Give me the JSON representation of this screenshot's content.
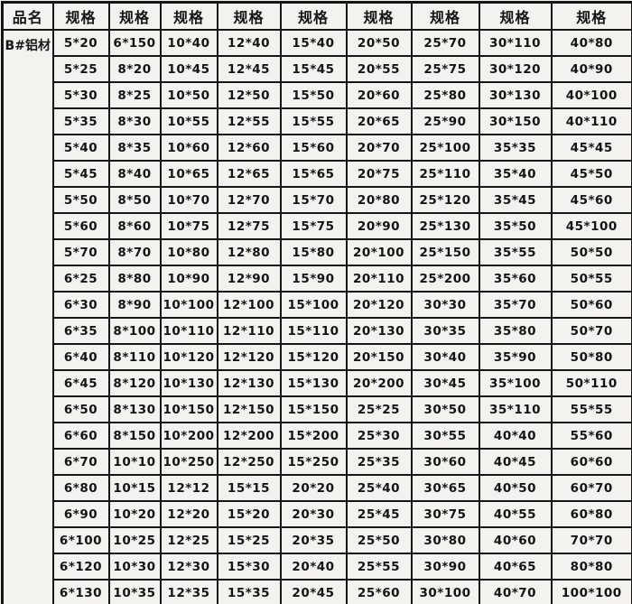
{
  "colors": {
    "background": "#f3f2ef",
    "border": "#161616",
    "text": "#141414"
  },
  "table": {
    "product_name": "B#铝材",
    "product_header": "品名",
    "spec_header": "规格",
    "headers": [
      "品名",
      "规格",
      "规格",
      "规格",
      "规格",
      "规格",
      "规格",
      "规格",
      "规格",
      "规格"
    ],
    "rows": [
      [
        "5*20",
        "6*150",
        "10*40",
        "12*40",
        "15*40",
        "20*50",
        "25*70",
        "30*110",
        "40*80"
      ],
      [
        "5*25",
        "8*20",
        "10*45",
        "12*45",
        "15*45",
        "20*55",
        "25*75",
        "30*120",
        "40*90"
      ],
      [
        "5*30",
        "8*25",
        "10*50",
        "12*50",
        "15*50",
        "20*60",
        "25*80",
        "30*130",
        "40*100"
      ],
      [
        "5*35",
        "8*30",
        "10*55",
        "12*55",
        "15*55",
        "20*65",
        "25*90",
        "30*150",
        "40*110"
      ],
      [
        "5*40",
        "8*35",
        "10*60",
        "12*60",
        "15*60",
        "20*70",
        "25*100",
        "35*35",
        "45*45"
      ],
      [
        "5*45",
        "8*40",
        "10*65",
        "12*65",
        "15*65",
        "20*75",
        "25*110",
        "35*40",
        "45*50"
      ],
      [
        "5*50",
        "8*50",
        "10*70",
        "12*70",
        "15*70",
        "20*80",
        "25*120",
        "35*45",
        "45*60"
      ],
      [
        "5*60",
        "8*60",
        "10*75",
        "12*75",
        "15*75",
        "20*90",
        "25*130",
        "35*50",
        "45*100"
      ],
      [
        "5*70",
        "8*70",
        "10*80",
        "12*80",
        "15*80",
        "20*100",
        "25*150",
        "35*55",
        "50*50"
      ],
      [
        "6*25",
        "8*80",
        "10*90",
        "12*90",
        "15*90",
        "20*110",
        "25*200",
        "35*60",
        "50*55"
      ],
      [
        "6*30",
        "8*90",
        "10*100",
        "12*100",
        "15*100",
        "20*120",
        "30*30",
        "35*70",
        "50*60"
      ],
      [
        "6*35",
        "8*100",
        "10*110",
        "12*110",
        "15*110",
        "20*130",
        "30*35",
        "35*80",
        "50*70"
      ],
      [
        "6*40",
        "8*110",
        "10*120",
        "12*120",
        "15*120",
        "20*150",
        "30*40",
        "35*90",
        "50*80"
      ],
      [
        "6*45",
        "8*120",
        "10*130",
        "12*130",
        "15*130",
        "20*200",
        "30*45",
        "35*100",
        "50*110"
      ],
      [
        "6*50",
        "8*130",
        "10*150",
        "12*150",
        "15*150",
        "25*25",
        "30*50",
        "35*110",
        "55*55"
      ],
      [
        "6*60",
        "8*150",
        "10*200",
        "12*200",
        "15*200",
        "25*30",
        "30*55",
        "40*40",
        "55*60"
      ],
      [
        "6*70",
        "10*10",
        "10*250",
        "12*250",
        "15*250",
        "25*35",
        "30*60",
        "40*45",
        "60*60"
      ],
      [
        "6*80",
        "10*15",
        "12*12",
        "15*15",
        "20*20",
        "25*40",
        "30*65",
        "40*50",
        "60*70"
      ],
      [
        "6*90",
        "10*20",
        "12*20",
        "15*20",
        "20*30",
        "25*45",
        "30*75",
        "40*55",
        "60*80"
      ],
      [
        "6*100",
        "10*25",
        "12*25",
        "15*25",
        "20*35",
        "25*50",
        "30*80",
        "40*60",
        "70*70"
      ],
      [
        "6*120",
        "10*30",
        "12*30",
        "15*30",
        "20*40",
        "25*55",
        "30*90",
        "40*65",
        "80*80"
      ],
      [
        "6*130",
        "10*35",
        "12*35",
        "15*35",
        "20*45",
        "25*60",
        "30*100",
        "40*70",
        "100*100"
      ]
    ]
  }
}
